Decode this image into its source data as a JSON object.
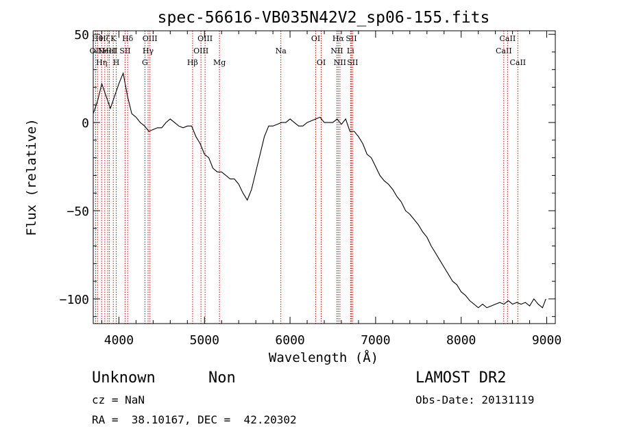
{
  "chart_data": {
    "type": "line",
    "title": "spec-56616-VB035N42V2_sp06-155.fits",
    "xlabel": "Wavelength (Å)",
    "ylabel": "Flux (relative)",
    "xlim": [
      3700,
      9100
    ],
    "ylim": [
      -114,
      52
    ],
    "x_ticks": [
      4000,
      5000,
      6000,
      7000,
      8000,
      9000
    ],
    "x_tick_labels": [
      "4000",
      "5000",
      "6000",
      "7000",
      "8000",
      "9000"
    ],
    "y_ticks": [
      -100,
      -50,
      0,
      50
    ],
    "y_tick_labels": [
      "−100",
      "−50",
      "0",
      "50"
    ],
    "grid": false,
    "line_color": "#000000",
    "marker_color": "#cc0000",
    "series": [
      {
        "x": [
          3700,
          3750,
          3800,
          3850,
          3900,
          3950,
          4000,
          4050,
          4100,
          4150,
          4200,
          4250,
          4300,
          4350,
          4400,
          4450,
          4500,
          4550,
          4600,
          4650,
          4700,
          4750,
          4800,
          4850,
          4900,
          4950,
          5000,
          5050,
          5100,
          5150,
          5200,
          5250,
          5300,
          5350,
          5400,
          5450,
          5500,
          5550,
          5600,
          5650,
          5700,
          5750,
          5800,
          5850,
          5900,
          5950,
          6000,
          6050,
          6100,
          6150,
          6200,
          6250,
          6300,
          6350,
          6400,
          6450,
          6500,
          6550,
          6600,
          6650,
          6700,
          6750,
          6800,
          6850,
          6900,
          6950,
          7000,
          7050,
          7100,
          7150,
          7200,
          7250,
          7300,
          7350,
          7400,
          7450,
          7500,
          7550,
          7600,
          7650,
          7700,
          7750,
          7800,
          7850,
          7900,
          7950,
          8000,
          8050,
          8100,
          8150,
          8200,
          8250,
          8300,
          8350,
          8400,
          8450,
          8500,
          8550,
          8600,
          8650,
          8700,
          8750,
          8800,
          8850,
          8900,
          8950,
          8990
        ],
        "y": [
          5,
          12,
          22,
          15,
          8,
          15,
          22,
          28,
          15,
          5,
          3,
          0,
          -2,
          -5,
          -4,
          -3,
          -3,
          0,
          2,
          0,
          -2,
          -3,
          -2,
          -2,
          -8,
          -12,
          -18,
          -20,
          -26,
          -28,
          -28,
          -30,
          -32,
          -32,
          -35,
          -40,
          -44,
          -38,
          -28,
          -18,
          -8,
          -2,
          -2,
          -1,
          0,
          0,
          2,
          0,
          -2,
          -2,
          0,
          1,
          2,
          3,
          0,
          0,
          0,
          2,
          -1,
          2,
          -5,
          -5,
          -8,
          -12,
          -18,
          -20,
          -25,
          -30,
          -33,
          -35,
          -38,
          -42,
          -45,
          -50,
          -52,
          -55,
          -58,
          -62,
          -65,
          -70,
          -74,
          -78,
          -82,
          -86,
          -90,
          -92,
          -96,
          -98,
          -101,
          -103,
          -105,
          -103,
          -105,
          -104,
          -103,
          -102,
          -103,
          -101,
          -103,
          -102,
          -103,
          -102,
          -104,
          -100,
          -103,
          -105,
          -100
        ]
      }
    ],
    "line_markers": [
      {
        "x": 3728,
        "label": "OII",
        "row": 1
      },
      {
        "x": 3750,
        "label": "Hθ",
        "row": 0
      },
      {
        "x": 3798,
        "label": "Hη",
        "row": 2
      },
      {
        "x": 3835,
        "label": "Hζ",
        "row": 0
      },
      {
        "x": 3869,
        "label": "NeIII",
        "row": 1
      },
      {
        "x": 3889,
        "label": "HeI",
        "row": 1
      },
      {
        "x": 3934,
        "label": "K",
        "row": 0
      },
      {
        "x": 3969,
        "label": "H",
        "row": 2
      },
      {
        "x": 4072,
        "label": "SII",
        "row": 1
      },
      {
        "x": 4102,
        "label": "Hδ",
        "row": 0
      },
      {
        "x": 4304,
        "label": "G",
        "row": 2
      },
      {
        "x": 4341,
        "label": "Hγ",
        "row": 1
      },
      {
        "x": 4363,
        "label": "OIII",
        "row": 0
      },
      {
        "x": 4861,
        "label": "Hβ",
        "row": 2
      },
      {
        "x": 4959,
        "label": "OIII",
        "row": 1
      },
      {
        "x": 5007,
        "label": "OIII",
        "row": 0
      },
      {
        "x": 5175,
        "label": "Mg",
        "row": 2
      },
      {
        "x": 5893,
        "label": "Na",
        "row": 1
      },
      {
        "x": 6300,
        "label": "OI",
        "row": 0
      },
      {
        "x": 6364,
        "label": "OI",
        "row": 2
      },
      {
        "x": 6548,
        "label": "NII",
        "row": 1
      },
      {
        "x": 6563,
        "label": "Hα",
        "row": 0
      },
      {
        "x": 6583,
        "label": "NII",
        "row": 2
      },
      {
        "x": 6707,
        "label": "Li",
        "row": 1
      },
      {
        "x": 6716,
        "label": "SII",
        "row": 0
      },
      {
        "x": 6731,
        "label": "SII",
        "row": 2
      },
      {
        "x": 8498,
        "label": "CaII",
        "row": 1
      },
      {
        "x": 8542,
        "label": "CaII",
        "row": 0
      },
      {
        "x": 8662,
        "label": "CaII",
        "row": 2
      }
    ]
  },
  "footer": {
    "class_label": "Unknown",
    "subclass_label": "Non",
    "survey": "LAMOST DR2",
    "cz": "cz = NaN",
    "obs_date": "Obs-Date: 20131119",
    "coords": "RA =  38.10167, DEC =  42.20302"
  }
}
